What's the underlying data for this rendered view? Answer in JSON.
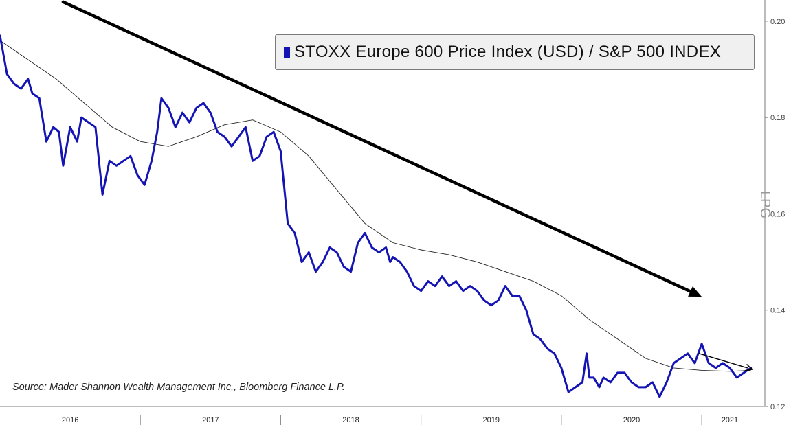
{
  "chart_data": {
    "type": "line",
    "legend": {
      "label": "STOXX Europe 600 Price Index (USD) / S&P 500 INDEX",
      "color": "#1414b4",
      "position": "top-right"
    },
    "source": "Source: Mader Shannon Wealth Management Inc., Bloomberg Finance L.P.",
    "side_label": "LPG",
    "ylim": [
      0.12,
      0.2044
    ],
    "y_ticks": [
      0.12,
      0.14,
      0.16,
      0.18,
      0.2
    ],
    "y_tick_labels": [
      "0.12",
      "0.14",
      "0.16",
      "0.18",
      "0.20"
    ],
    "xlim": [
      2016.0,
      2021.45
    ],
    "x_labels": [
      {
        "label": "2016",
        "x": 2016.5
      },
      {
        "label": "2017",
        "x": 2017.5
      },
      {
        "label": "2018",
        "x": 2018.5
      },
      {
        "label": "2019",
        "x": 2019.5
      },
      {
        "label": "2020",
        "x": 2020.5
      },
      {
        "label": "2021",
        "x": 2021.2
      }
    ],
    "x_dividers": [
      2017.0,
      2018.0,
      2019.0,
      2020.0,
      2021.0
    ],
    "grid": false,
    "series": [
      {
        "name": "STOXX Europe 600 Price Index (USD) / S&P 500 INDEX",
        "color": "#1414b4",
        "x": [
          2016.0,
          2016.05,
          2016.1,
          2016.15,
          2016.2,
          2016.23,
          2016.28,
          2016.33,
          2016.38,
          2016.42,
          2016.45,
          2016.5,
          2016.55,
          2016.58,
          2016.63,
          2016.68,
          2016.73,
          2016.78,
          2016.83,
          2016.88,
          2016.93,
          2016.98,
          2017.03,
          2017.08,
          2017.12,
          2017.15,
          2017.2,
          2017.25,
          2017.3,
          2017.35,
          2017.4,
          2017.45,
          2017.5,
          2017.55,
          2017.6,
          2017.65,
          2017.7,
          2017.75,
          2017.8,
          2017.85,
          2017.9,
          2017.95,
          2018.0,
          2018.05,
          2018.1,
          2018.15,
          2018.2,
          2018.25,
          2018.3,
          2018.35,
          2018.4,
          2018.45,
          2018.5,
          2018.55,
          2018.6,
          2018.65,
          2018.7,
          2018.75,
          2018.78,
          2018.8,
          2018.85,
          2018.9,
          2018.95,
          2019.0,
          2019.05,
          2019.1,
          2019.15,
          2019.2,
          2019.25,
          2019.3,
          2019.35,
          2019.4,
          2019.45,
          2019.5,
          2019.55,
          2019.6,
          2019.65,
          2019.7,
          2019.75,
          2019.8,
          2019.85,
          2019.9,
          2019.95,
          2020.0,
          2020.05,
          2020.1,
          2020.15,
          2020.18,
          2020.2,
          2020.23,
          2020.27,
          2020.3,
          2020.35,
          2020.4,
          2020.45,
          2020.5,
          2020.55,
          2020.6,
          2020.65,
          2020.7,
          2020.75,
          2020.8,
          2020.85,
          2020.9,
          2020.95,
          2021.0,
          2021.05,
          2021.1,
          2021.15,
          2021.2,
          2021.25,
          2021.3,
          2021.35
        ],
        "values": [
          0.197,
          0.189,
          0.187,
          0.186,
          0.188,
          0.185,
          0.184,
          0.175,
          0.178,
          0.177,
          0.17,
          0.178,
          0.175,
          0.18,
          0.179,
          0.178,
          0.164,
          0.171,
          0.17,
          0.171,
          0.172,
          0.168,
          0.166,
          0.171,
          0.177,
          0.184,
          0.182,
          0.178,
          0.181,
          0.179,
          0.182,
          0.183,
          0.181,
          0.177,
          0.176,
          0.174,
          0.176,
          0.178,
          0.171,
          0.172,
          0.176,
          0.177,
          0.173,
          0.158,
          0.156,
          0.15,
          0.152,
          0.148,
          0.15,
          0.153,
          0.152,
          0.149,
          0.148,
          0.154,
          0.156,
          0.153,
          0.152,
          0.153,
          0.15,
          0.151,
          0.15,
          0.148,
          0.145,
          0.144,
          0.146,
          0.145,
          0.147,
          0.145,
          0.146,
          0.144,
          0.145,
          0.144,
          0.142,
          0.141,
          0.142,
          0.145,
          0.143,
          0.143,
          0.14,
          0.135,
          0.134,
          0.132,
          0.131,
          0.128,
          0.123,
          0.124,
          0.125,
          0.131,
          0.126,
          0.126,
          0.124,
          0.126,
          0.125,
          0.127,
          0.127,
          0.125,
          0.124,
          0.124,
          0.125,
          0.122,
          0.125,
          0.129,
          0.13,
          0.131,
          0.129,
          0.133,
          0.129,
          0.128,
          0.129,
          0.128,
          0.126,
          0.127,
          0.128
        ]
      },
      {
        "color": "#222222",
        "x": [
          2016.0,
          2016.2,
          2016.4,
          2016.6,
          2016.8,
          2017.0,
          2017.2,
          2017.4,
          2017.6,
          2017.8,
          2018.0,
          2018.2,
          2018.4,
          2018.6,
          2018.8,
          2019.0,
          2019.2,
          2019.4,
          2019.6,
          2019.8,
          2020.0,
          2020.2,
          2020.4,
          2020.6,
          2020.8,
          2021.0,
          2021.2,
          2021.35
        ],
        "values": [
          0.196,
          0.192,
          0.188,
          0.183,
          0.178,
          0.175,
          0.174,
          0.176,
          0.1785,
          0.1795,
          0.177,
          0.172,
          0.165,
          0.158,
          0.154,
          0.1525,
          0.1515,
          0.15,
          0.148,
          0.146,
          0.143,
          0.138,
          0.134,
          0.13,
          0.128,
          0.1275,
          0.1273,
          0.1275
        ]
      }
    ],
    "annotations": [
      {
        "type": "arrow",
        "from": [
          2016.45,
          0.204
        ],
        "to": [
          2021.0,
          0.1428
        ],
        "width": 4.5
      },
      {
        "type": "arrow",
        "from": [
          2020.98,
          0.131
        ],
        "to": [
          2021.36,
          0.1277
        ],
        "width": 1.4
      }
    ]
  }
}
